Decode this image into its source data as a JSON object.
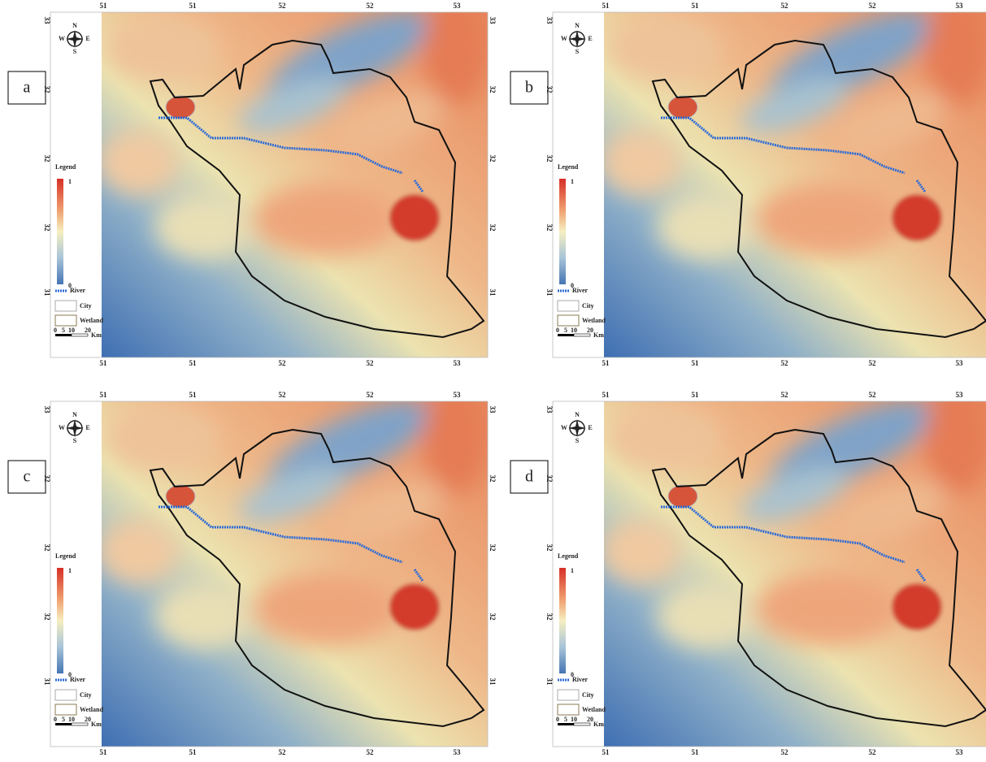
{
  "panels": [
    {
      "label": "a"
    },
    {
      "label": "b"
    },
    {
      "label": "c"
    },
    {
      "label": "d"
    }
  ],
  "axis_labels": {
    "horizontal": [
      "51",
      "51",
      "52",
      "52",
      "53"
    ],
    "vertical": [
      "33",
      "32",
      "32",
      "32",
      "31"
    ]
  },
  "compass": {
    "n": "N",
    "s": "S",
    "w": "W",
    "e": "E"
  },
  "legend": {
    "title": "Legend",
    "high": "1",
    "low": "0",
    "river": "River",
    "city": "City",
    "wetland": "Wetland",
    "scale": [
      "0",
      "5",
      "10",
      "20"
    ],
    "unit": "Km"
  }
}
